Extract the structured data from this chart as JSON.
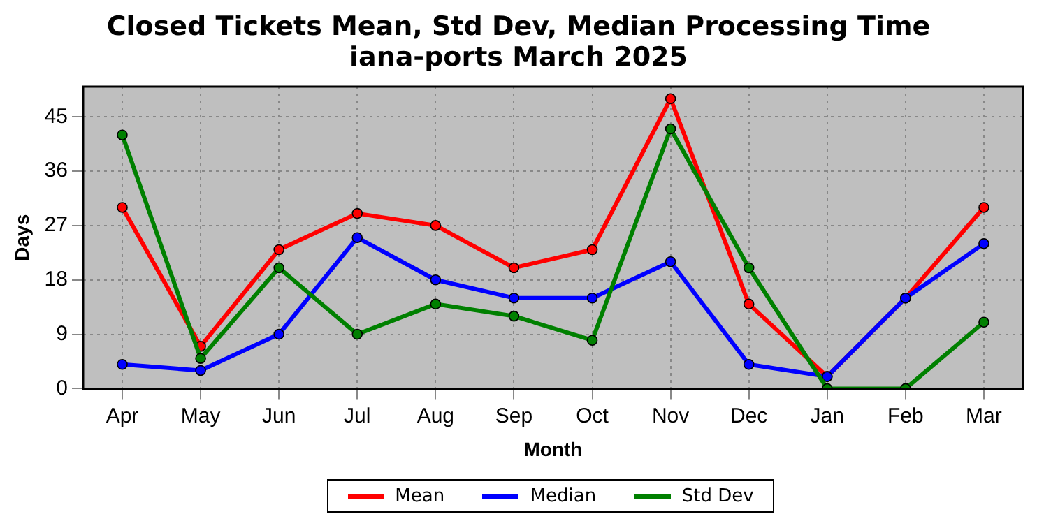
{
  "chart_data": {
    "type": "line",
    "title": "Closed Tickets Mean, Std Dev, Median Processing Time\niana-ports March 2025",
    "xlabel": "Month",
    "ylabel": "Days",
    "categories": [
      "Apr",
      "May",
      "Jun",
      "Jul",
      "Aug",
      "Sep",
      "Oct",
      "Nov",
      "Dec",
      "Jan",
      "Feb",
      "Mar"
    ],
    "series": [
      {
        "name": "Mean",
        "color": "#ff0000",
        "values": [
          30,
          7,
          23,
          29,
          27,
          20,
          23,
          48,
          14,
          2,
          15,
          30
        ]
      },
      {
        "name": "Median",
        "color": "#0000ff",
        "values": [
          4,
          3,
          9,
          25,
          18,
          15,
          15,
          21,
          4,
          2,
          15,
          24
        ]
      },
      {
        "name": "Std Dev",
        "color": "#008000",
        "values": [
          42,
          5,
          20,
          9,
          14,
          12,
          8,
          43,
          20,
          0,
          0,
          11
        ]
      }
    ],
    "ylim": [
      0,
      50
    ],
    "yticks": [
      0,
      9,
      18,
      27,
      36,
      45
    ],
    "grid": true,
    "legend": "bottom",
    "marker": "circle",
    "line_style": "solid"
  }
}
